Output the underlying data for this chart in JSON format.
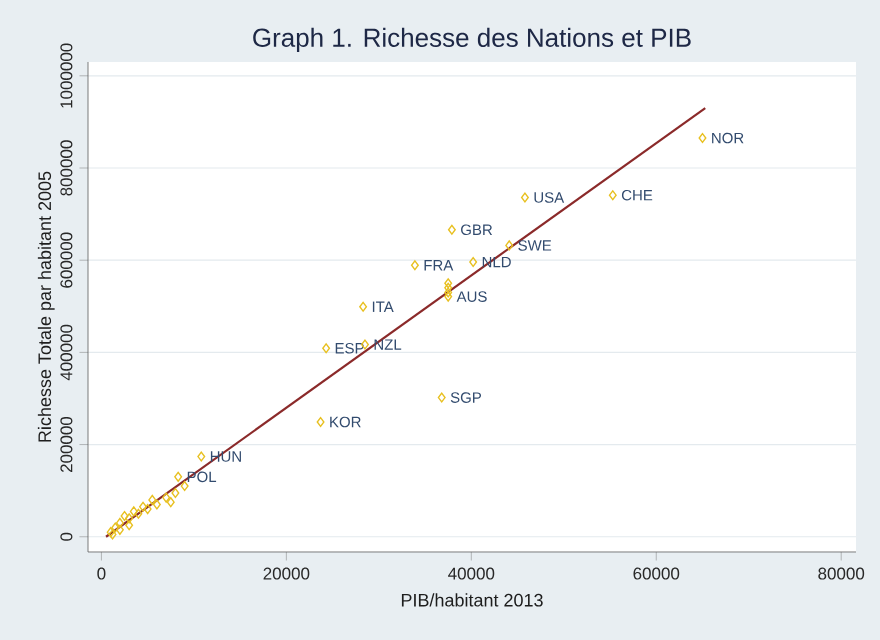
{
  "chart_data": {
    "type": "scatter",
    "title": "Graph 1. Richesse des Nations et PIB",
    "xlabel": "PIB/habitant 2013",
    "ylabel": "Richesse Totale par habitant 2005",
    "xlim": [
      -1450,
      81600
    ],
    "ylim": [
      -33000,
      1030000
    ],
    "xticks": [
      0,
      20000,
      40000,
      60000,
      80000
    ],
    "yticks": [
      0,
      200000,
      400000,
      600000,
      800000,
      1000000
    ],
    "grid": "y",
    "series": [
      {
        "marker": "diamond",
        "color": "#e8c020",
        "x": [
          65000,
          45800,
          55300,
          37900,
          44100,
          40200,
          33900,
          37500,
          37500,
          37500,
          37500,
          28300,
          24300,
          28500,
          36800,
          23700,
          10800,
          8300,
          1000,
          1200,
          1500,
          2000,
          2000,
          2500,
          3000,
          3000,
          3500,
          4000,
          4500,
          5000,
          5500,
          6000,
          7000,
          7500,
          8000,
          9000
        ],
        "values": [
          865000,
          736000,
          741000,
          666000,
          632000,
          596000,
          589000,
          550000,
          540000,
          530000,
          521000,
          499000,
          409000,
          417000,
          302000,
          249000,
          174000,
          130000,
          10000,
          5000,
          20000,
          30000,
          15000,
          45000,
          40000,
          25000,
          55000,
          50000,
          65000,
          60000,
          80000,
          70000,
          85000,
          75000,
          95000,
          110000
        ]
      },
      {
        "type": "line",
        "color": "#8b2a2a",
        "x": [
          500,
          65300
        ],
        "values": [
          0,
          930000
        ]
      }
    ],
    "annotations": [
      {
        "text": "NOR",
        "x": 65000,
        "y": 865000
      },
      {
        "text": "USA",
        "x": 45800,
        "y": 736000
      },
      {
        "text": "CHE",
        "x": 55300,
        "y": 741000
      },
      {
        "text": "GBR",
        "x": 37900,
        "y": 666000
      },
      {
        "text": "SWE",
        "x": 44100,
        "y": 632000
      },
      {
        "text": "NLD",
        "x": 40200,
        "y": 596000
      },
      {
        "text": "FRA",
        "x": 33900,
        "y": 589000
      },
      {
        "text": "AUS",
        "x": 37500,
        "y": 521000
      },
      {
        "text": "ITA",
        "x": 28300,
        "y": 499000
      },
      {
        "text": "ESP",
        "x": 24300,
        "y": 409000
      },
      {
        "text": "NZL",
        "x": 28500,
        "y": 417000
      },
      {
        "text": "SGP",
        "x": 36800,
        "y": 302000
      },
      {
        "text": "KOR",
        "x": 23700,
        "y": 249000
      },
      {
        "text": "HUN",
        "x": 10800,
        "y": 174000
      },
      {
        "text": "POL",
        "x": 8300,
        "y": 130000
      }
    ]
  }
}
